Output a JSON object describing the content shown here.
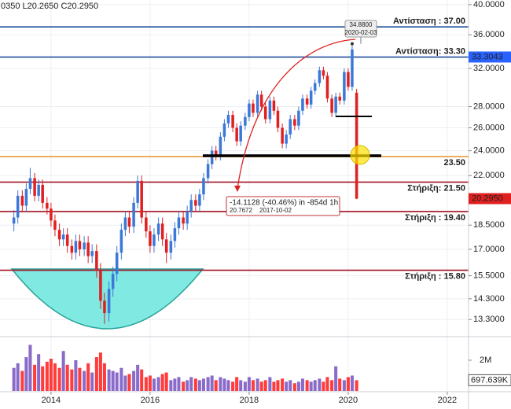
{
  "chart_data": {
    "type": "candlestick",
    "header": "0350 L20.2650 C20.2950",
    "up_color": "#3c78d8",
    "down_color": "#e02020",
    "log_scale": true,
    "grid": true,
    "xlim": [
      2012.97,
      2022.43
    ],
    "xticks": [
      2014,
      2016,
      2018,
      2020,
      2022
    ],
    "ylim": [
      12.63,
      40.65
    ],
    "yticks": [
      {
        "value": 13.3,
        "label": "13.3000"
      },
      {
        "value": 14.3,
        "label": "14.3000"
      },
      {
        "value": 15.5,
        "label": "15.5000"
      },
      {
        "value": 17,
        "label": "17.0000"
      },
      {
        "value": 18.5,
        "label": "18.5000"
      },
      {
        "value": 22,
        "label": "22.0000"
      },
      {
        "value": 24,
        "label": "24.0000"
      },
      {
        "value": 26,
        "label": "26.0000"
      },
      {
        "value": 28,
        "label": "28.0000"
      },
      {
        "value": 32,
        "label": "32.0000"
      },
      {
        "value": 36,
        "label": "36.0000"
      },
      {
        "value": 40,
        "label": "40.0000"
      }
    ],
    "x": [
      2013.25,
      2013.33,
      2013.42,
      2013.5,
      2013.58,
      2013.67,
      2013.75,
      2013.83,
      2013.92,
      2014,
      2014.08,
      2014.17,
      2014.25,
      2014.33,
      2014.42,
      2014.5,
      2014.58,
      2014.67,
      2014.75,
      2014.83,
      2014.92,
      2015,
      2015.08,
      2015.17,
      2015.25,
      2015.33,
      2015.42,
      2015.5,
      2015.58,
      2015.67,
      2015.75,
      2015.83,
      2015.92,
      2016,
      2016.08,
      2016.17,
      2016.25,
      2016.33,
      2016.42,
      2016.5,
      2016.58,
      2016.67,
      2016.75,
      2016.83,
      2016.92,
      2017,
      2017.08,
      2017.17,
      2017.25,
      2017.33,
      2017.42,
      2017.5,
      2017.58,
      2017.67,
      2017.75,
      2017.83,
      2017.92,
      2018,
      2018.08,
      2018.17,
      2018.25,
      2018.33,
      2018.42,
      2018.5,
      2018.58,
      2018.67,
      2018.75,
      2018.83,
      2018.92,
      2019,
      2019.08,
      2019.17,
      2019.25,
      2019.33,
      2019.42,
      2019.5,
      2019.58,
      2019.67,
      2019.75,
      2019.83,
      2019.92,
      2020,
      2020.08,
      2020.17
    ],
    "open": [
      18.6,
      19.0,
      20.5,
      19.8,
      21.0,
      21.8,
      20.5,
      21.3,
      20.0,
      19.6,
      18.8,
      18.2,
      17.6,
      17.9,
      17.2,
      16.8,
      17.5,
      17.0,
      17.4,
      16.6,
      16.9,
      15.8,
      14.2,
      13.6,
      14.8,
      15.6,
      16.8,
      18.2,
      19.0,
      18.4,
      20.0,
      21.6,
      19.0,
      18.1,
      17.2,
      17.9,
      18.6,
      17.6,
      16.8,
      17.5,
      18.3,
      19.0,
      18.6,
      19.4,
      20.2,
      19.8,
      20.6,
      21.8,
      22.9,
      24.0,
      23.6,
      25.2,
      26.4,
      27.2,
      26.0,
      24.8,
      26.2,
      27.0,
      28.3,
      27.4,
      29.2,
      28.0,
      26.8,
      28.6,
      27.6,
      26.0,
      24.6,
      25.4,
      26.8,
      26.2,
      27.6,
      28.8,
      28.2,
      29.6,
      30.4,
      31.8,
      31.2,
      28.8,
      27.4,
      29.0,
      28.6,
      31.6,
      30.0,
      29.4
    ],
    "high": [
      19.5,
      20.9,
      20.9,
      21.4,
      22.6,
      22.2,
      21.7,
      21.7,
      20.4,
      20.0,
      19.2,
      18.6,
      18.3,
      18.3,
      17.6,
      17.9,
      17.9,
      17.8,
      17.8,
      17.3,
      17.3,
      16.2,
      14.6,
      15.2,
      16.0,
      17.2,
      18.6,
      19.4,
      19.4,
      20.4,
      22.0,
      22.0,
      19.4,
      18.5,
      18.3,
      19.0,
      19.0,
      18.0,
      17.9,
      18.7,
      19.4,
      19.4,
      19.8,
      20.6,
      20.6,
      21.0,
      22.2,
      23.3,
      24.4,
      24.4,
      25.6,
      26.8,
      27.6,
      27.6,
      26.4,
      26.6,
      27.4,
      28.7,
      28.7,
      29.6,
      29.6,
      28.4,
      29.0,
      29.0,
      28.0,
      26.4,
      25.8,
      27.2,
      27.2,
      28.0,
      29.2,
      29.2,
      30.0,
      30.8,
      32.2,
      32.2,
      31.6,
      29.2,
      29.4,
      29.4,
      32.0,
      32.0,
      34.88,
      29.8
    ],
    "low": [
      18.1,
      18.6,
      19.4,
      19.4,
      20.6,
      20.1,
      20.1,
      19.6,
      19.2,
      18.4,
      17.8,
      17.2,
      17.2,
      16.8,
      16.4,
      16.4,
      16.6,
      16.6,
      16.2,
      16.2,
      15.4,
      13.8,
      13.1,
      13.2,
      14.4,
      15.2,
      16.4,
      17.8,
      18.0,
      18.0,
      19.6,
      18.6,
      17.7,
      16.8,
      16.8,
      17.5,
      17.2,
      16.2,
      16.4,
      17.1,
      17.9,
      18.2,
      18.2,
      19.0,
      19.4,
      19.4,
      20.2,
      21.4,
      22.5,
      23.2,
      23.2,
      24.8,
      26.0,
      25.6,
      24.4,
      24.4,
      25.8,
      26.6,
      27.0,
      27.0,
      27.6,
      26.4,
      26.4,
      27.2,
      25.6,
      24.2,
      24.2,
      25.0,
      25.8,
      25.8,
      27.2,
      27.8,
      27.8,
      29.2,
      30.0,
      30.8,
      28.4,
      27.0,
      27.0,
      28.2,
      28.2,
      29.6,
      29.6,
      20.265
    ],
    "close": [
      19.0,
      20.5,
      19.8,
      21.0,
      21.8,
      20.5,
      21.3,
      20.0,
      19.6,
      18.8,
      18.2,
      17.6,
      17.9,
      17.2,
      16.8,
      17.5,
      17.0,
      17.4,
      16.6,
      16.9,
      15.8,
      14.2,
      13.6,
      14.8,
      15.6,
      16.8,
      18.2,
      19.0,
      18.4,
      20.0,
      21.6,
      19.0,
      18.1,
      17.2,
      17.9,
      18.6,
      17.6,
      16.8,
      17.5,
      18.3,
      19.0,
      18.6,
      19.4,
      20.2,
      19.8,
      20.6,
      21.8,
      22.9,
      24.0,
      23.6,
      25.2,
      26.4,
      27.2,
      26.0,
      24.8,
      26.2,
      27.0,
      28.3,
      27.4,
      29.2,
      28.0,
      26.8,
      28.6,
      27.6,
      26.0,
      24.6,
      25.4,
      26.8,
      26.2,
      27.6,
      28.8,
      28.2,
      29.6,
      30.4,
      31.8,
      31.2,
      28.8,
      27.4,
      29.0,
      28.6,
      31.6,
      30.0,
      34.2,
      20.295
    ],
    "levels": [
      {
        "label": "Αντίσταση : 37.00",
        "value": 37.0,
        "color": "#1f4e9c",
        "side": "above"
      },
      {
        "label": "Αντίσταση: 33.30",
        "value": 33.3,
        "color": "#1f4e9c",
        "side": "above"
      },
      {
        "label": "23.50",
        "value": 23.5,
        "color": "#e8922a",
        "side": "below"
      },
      {
        "label": "Στήριξη: 21.50",
        "value": 21.5,
        "color": "#a01020",
        "side": "below"
      },
      {
        "label": "Στήριξη : 19.40",
        "value": 19.4,
        "color": "#a01020",
        "side": "below"
      },
      {
        "label": "Στήριξη : 15.80",
        "value": 15.8,
        "color": "#a01020",
        "side": "below"
      }
    ],
    "price_tags": [
      {
        "value": 33.3043,
        "label": "33.3043",
        "color": "#2962ff"
      },
      {
        "value": 20.295,
        "label": "20.2950",
        "color": "#e02020"
      }
    ],
    "peak": {
      "value": 34.88,
      "label": "34.8800",
      "date": "2020-02-03"
    },
    "measure": {
      "text": "-14.1128 (-40.46%) in -854d 1h",
      "price": "20.7672",
      "date": "2017-10-02"
    },
    "volume": {
      "up_color": "#8a6bc9",
      "down_color": "#ff3b3b",
      "ylim": [
        0,
        3330000
      ],
      "yticks": [
        {
          "value": 2000000,
          "label": "2M"
        }
      ],
      "last": {
        "value": 697639,
        "label": "697.639K"
      },
      "values": [
        1500000,
        1800000,
        1300000,
        2200000,
        3000000,
        1700000,
        2400000,
        1600000,
        1900000,
        2100000,
        1800000,
        1500000,
        2600000,
        1700000,
        1400000,
        2000000,
        1500000,
        1300000,
        1800000,
        1200000,
        2200000,
        2500000,
        1800000,
        1400000,
        1300000,
        1200000,
        1500000,
        1000000,
        1100000,
        1300000,
        1700000,
        1400000,
        900000,
        1000000,
        800000,
        900000,
        1100000,
        1200000,
        700000,
        800000,
        900000,
        600000,
        700000,
        900000,
        800000,
        700000,
        800000,
        900000,
        1000000,
        700000,
        900000,
        800000,
        700000,
        600000,
        900000,
        700000,
        600000,
        900000,
        700000,
        800000,
        600000,
        700000,
        900000,
        600000,
        700000,
        800000,
        600000,
        700000,
        500000,
        600000,
        800000,
        700000,
        600000,
        700000,
        800000,
        600000,
        900000,
        700000,
        1600000,
        800000,
        700000,
        900000,
        1000000,
        697639
      ]
    }
  }
}
